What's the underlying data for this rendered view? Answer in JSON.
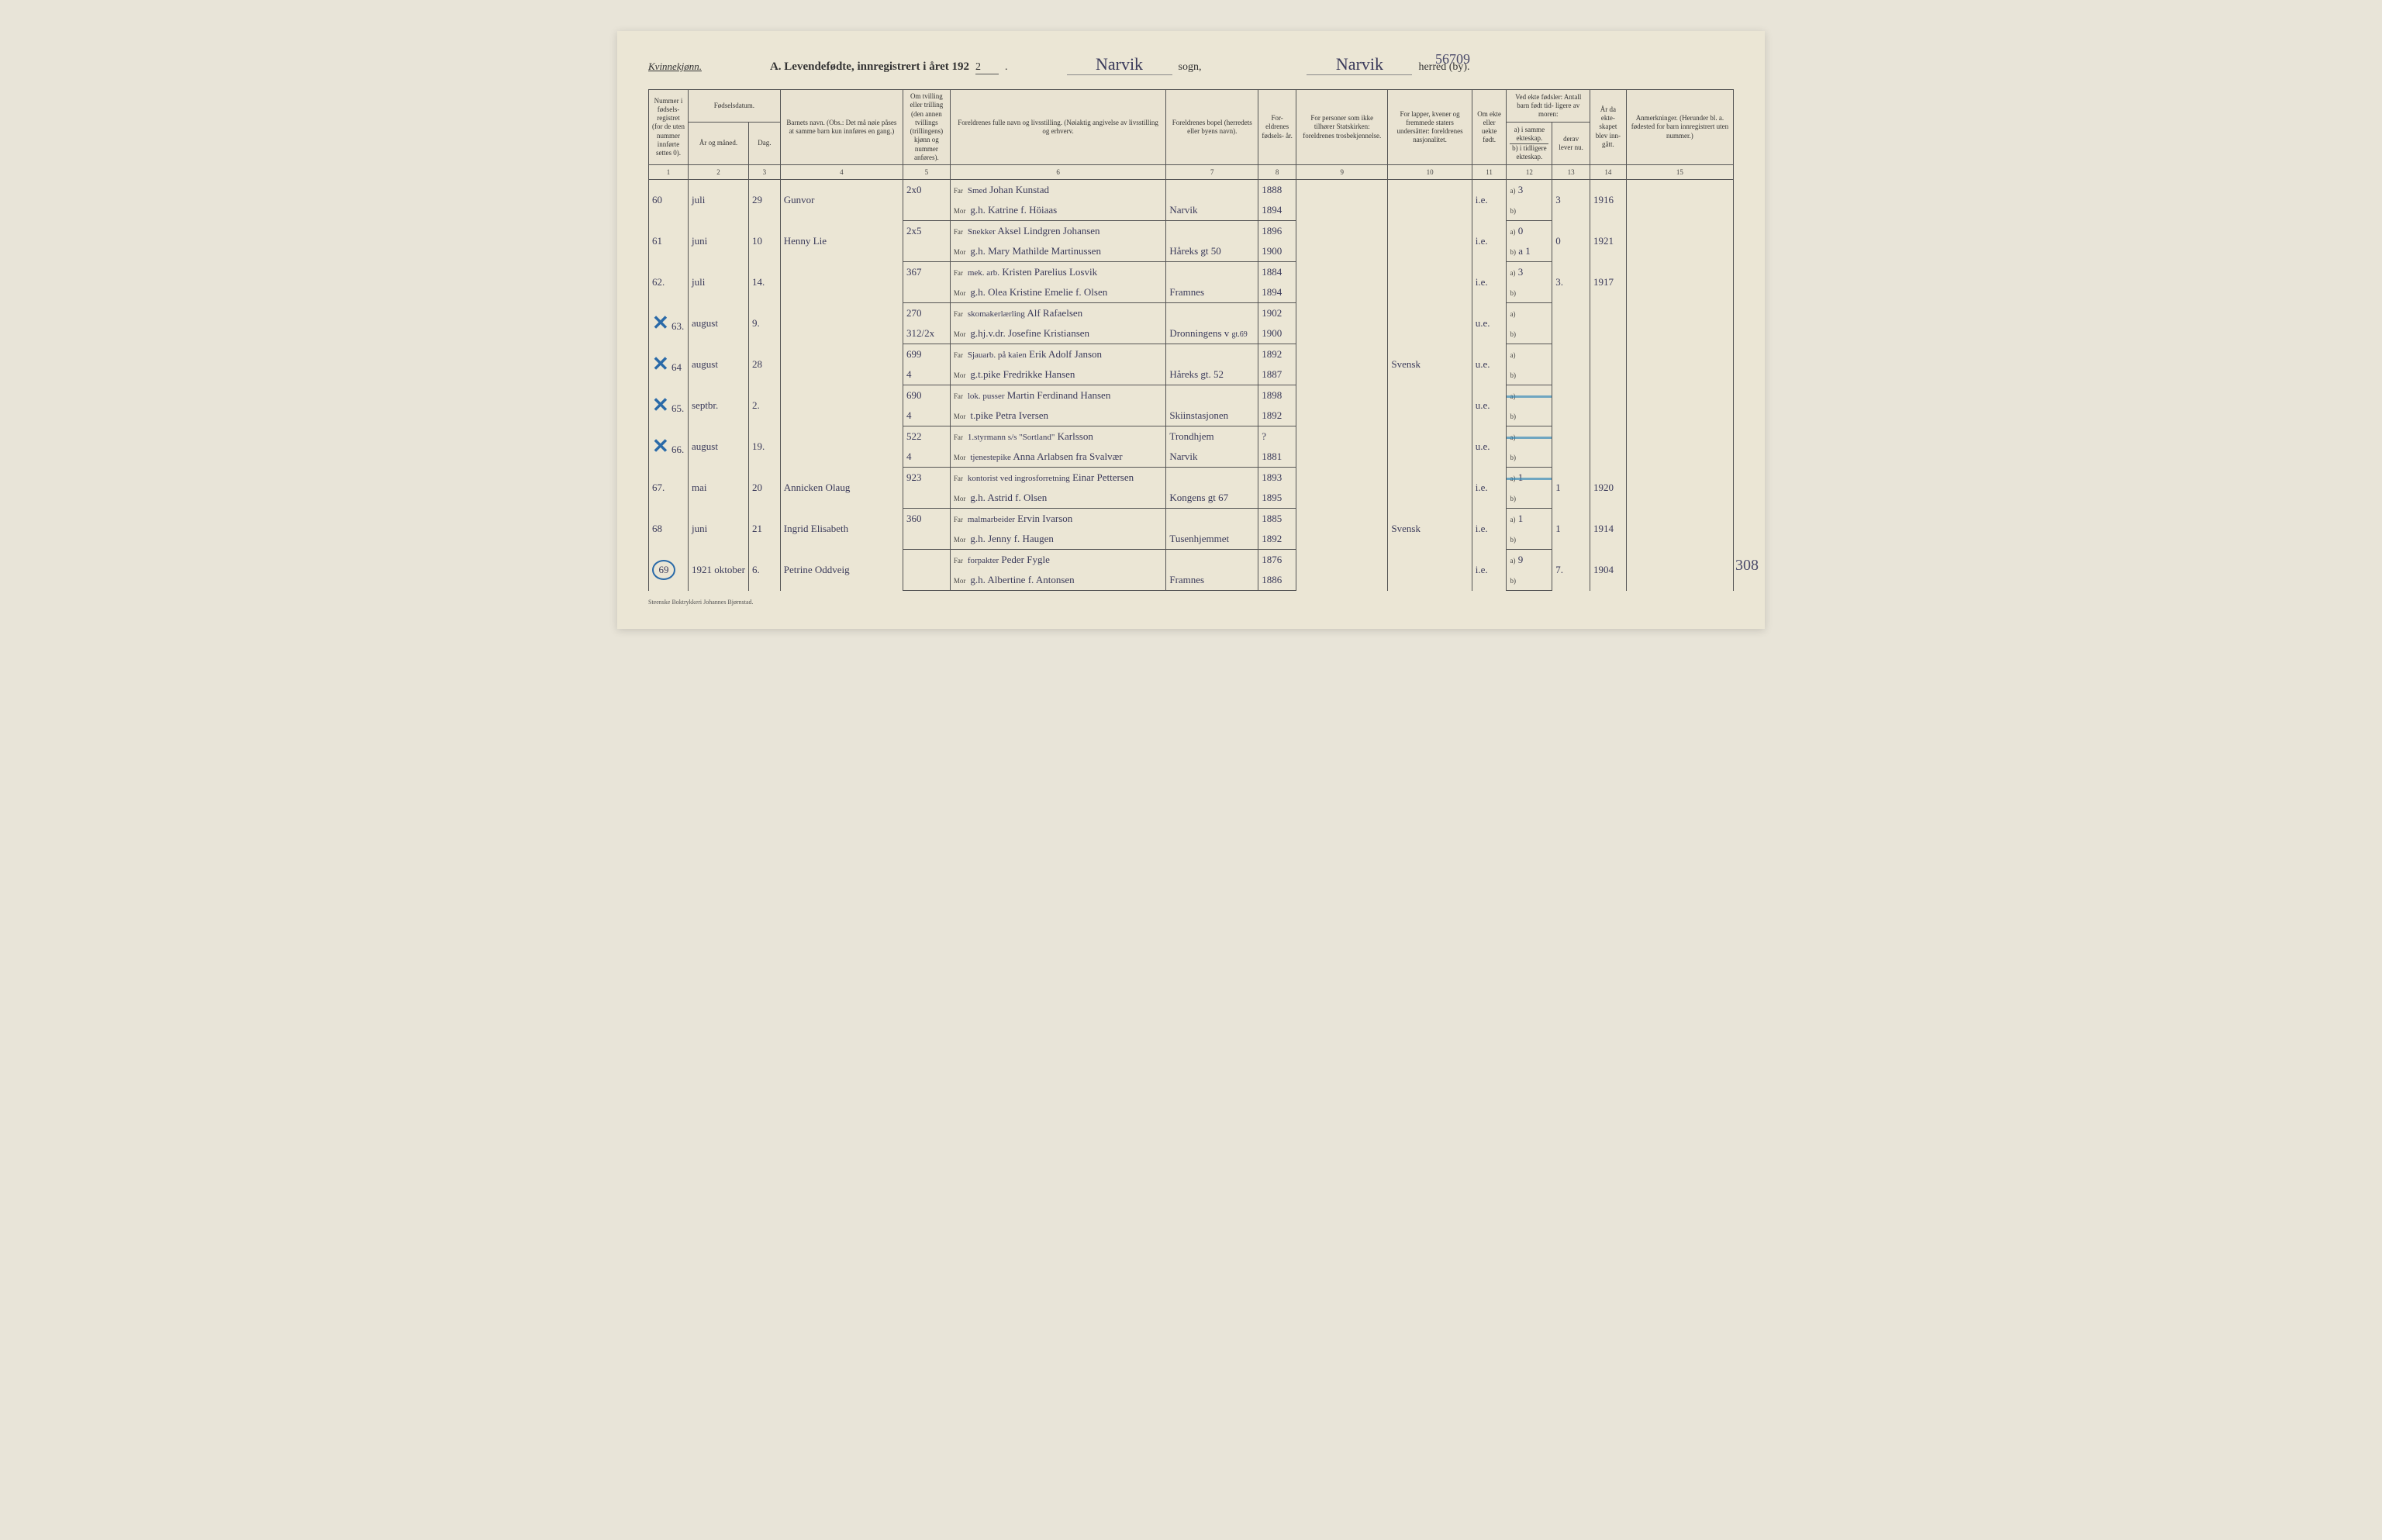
{
  "header": {
    "gender": "Kvinnekjønn.",
    "title_prefix": "A.  Levendefødte, innregistrert i året 192",
    "year_suffix": "2",
    "sogn_label": "sogn,",
    "herred_label": "herred (by).",
    "sogn_value": "Narvik",
    "herred_value": "Narvik",
    "ref_number": "56709"
  },
  "column_headers": {
    "c1": "Nummer i fødsels- registret (for de uten nummer innførte settes 0).",
    "c23_group": "Fødselsdatum.",
    "c2": "År og måned.",
    "c3": "Dag.",
    "c4": "Barnets navn.\n(Obs.: Det må nøie påses at samme barn kun innføres en gang.)",
    "c5": "Om tvilling eller trilling (den annen tvillings (trillingens) kjønn og nummer anføres).",
    "c6": "Foreldrenes fulle navn og livsstilling.\n(Nøiaktig angivelse av livsstilling og erhverv.",
    "c7": "Foreldrenes bopel\n(herredets eller byens navn).",
    "c8": "For- eldrenes fødsels- år.",
    "c9": "For personer som ikke tilhører Statskirken:\nforeldrenes trosbekjennelse.",
    "c10": "For lapper, kvener og fremmede staters undersåtter:\nforeldrenes nasjonalitet.",
    "c11": "Om ekte eller uekte født.",
    "c12_13_group": "Ved ekte fødsler:\nAntall barn født tid- ligere av moren:",
    "c12a": "a) i samme ekteskap.",
    "c12b": "b) i tidligere ekteskap.",
    "c13": "derav lever nu.",
    "c14": "År da ekte- skapet blev inn- gått.",
    "c15": "Anmerkninger.\n(Herunder bl. a. fødested for barn innregistrert uten nummer.)"
  },
  "col_numbers": [
    "1",
    "2",
    "3",
    "4",
    "5",
    "6",
    "7",
    "8",
    "9",
    "10",
    "11",
    "12",
    "13",
    "14",
    "15"
  ],
  "far_label": "Far",
  "mor_label": "Mor",
  "sub_a": "a)",
  "sub_b": "b)",
  "prof_top": "Smed",
  "rows": [
    {
      "num": "60",
      "month": "juli",
      "day": "29",
      "child": "Gunvor",
      "twin": "2x0",
      "far": "Johan Kunstad",
      "mor": "g.h. Katrine f. Höiaas",
      "bopel": "Narvik",
      "far_year": "1888",
      "mor_year": "1894",
      "rel": "",
      "nat": "",
      "ekte": "i.e.",
      "a": "3",
      "d": "3",
      "b": "",
      "year": "1916",
      "rem": ""
    },
    {
      "num": "61",
      "month": "juni",
      "day": "10",
      "child": "Henny Lie",
      "twin": "2x5",
      "far_prof": "Snekker",
      "far": "Aksel Lindgren Johansen",
      "mor": "g.h. Mary Mathilde Martinussen",
      "bopel": "Håreks gt 50",
      "far_year": "1896",
      "mor_year": "1900",
      "rel": "",
      "nat": "",
      "ekte": "i.e.",
      "a": "0",
      "d": "0",
      "b": "a 1",
      "year": "1921",
      "rem": ""
    },
    {
      "num": "62.",
      "month": "juli",
      "day": "14.",
      "child": "",
      "twin": "367",
      "far_prof": "mek. arb.",
      "far": "Kristen Parelius Losvik",
      "mor": "g.h. Olea Kristine Emelie f. Olsen",
      "bopel": "Framnes",
      "far_year": "1884",
      "mor_year": "1894",
      "rel": "",
      "nat": "",
      "ekte": "i.e.",
      "a": "3",
      "d": "3.",
      "b": "",
      "year": "1917",
      "rem": ""
    },
    {
      "num": "63.",
      "month": "august",
      "day": "9.",
      "child": "",
      "twin": "270",
      "far_prof": "skomakerlærling",
      "far": "Alf Rafaelsen",
      "mor": "g.hj.v.dr. Josefine Kristiansen",
      "twin2": "312/2x",
      "bopel": "Dronningens v",
      "bopel_extra": "gt.69",
      "far_year": "1902",
      "mor_year": "1900",
      "rel": "",
      "nat": "",
      "ekte": "u.e.",
      "a": "",
      "d": "",
      "b": "",
      "year": "",
      "rem": "",
      "mark": "X"
    },
    {
      "num": "64",
      "month": "august",
      "day": "28",
      "child": "",
      "twin": "699",
      "far_prof": "Sjauarb. på kaien",
      "far": "Erik Adolf Janson",
      "mor": "g.t.pike Fredrikke Hansen",
      "twin2": "4",
      "bopel": "Håreks gt. 52",
      "far_year": "1892",
      "mor_year": "1887",
      "rel": "",
      "nat": "Svensk",
      "ekte": "u.e.",
      "a": "",
      "d": "",
      "b": "",
      "year": "",
      "rem": "",
      "mark": "X"
    },
    {
      "num": "65.",
      "month": "septbr.",
      "day": "2.",
      "child": "",
      "twin": "690",
      "far_prof": "lok. pusser",
      "far": "Martin Ferdinand Hansen",
      "mor": "t.pike Petra Iversen",
      "twin2": "4",
      "bopel": "Skiinstasjonen",
      "far_year": "1898",
      "mor_year": "1892",
      "rel": "",
      "nat": "",
      "ekte": "u.e.",
      "a": "",
      "d": "",
      "b": "",
      "year": "",
      "rem": "",
      "mark": "X",
      "blue_strike": true
    },
    {
      "num": "66.",
      "month": "august",
      "day": "19.",
      "child": "",
      "twin": "522",
      "far_prof": "1.styrmann s/s \"Sortland\"",
      "far": "Karlsson",
      "far_bopel": "Trondhjem",
      "mor": "Anna Arlabsen fra Svalvær",
      "mor_prof": "tjenestepike",
      "twin2": "4",
      "bopel": "Narvik",
      "far_year": "?",
      "mor_year": "1881",
      "rel": "",
      "nat": "",
      "ekte": "u.e.",
      "a": "",
      "d": "",
      "b": "",
      "year": "",
      "rem": "",
      "mark": "X",
      "blue_strike": true
    },
    {
      "num": "67.",
      "month": "mai",
      "day": "20",
      "child": "Annicken Olaug",
      "twin": "923",
      "far_prof": "kontorist ved ingrosforretning",
      "far": "Einar Pettersen",
      "mor": "g.h. Astrid f. Olsen",
      "bopel": "Kongens gt 67",
      "far_year": "1893",
      "mor_year": "1895",
      "rel": "",
      "nat": "",
      "ekte": "i.e.",
      "a": "1",
      "d": "1",
      "b": "",
      "year": "1920",
      "rem": "",
      "blue_strike": true
    },
    {
      "num": "68",
      "month": "juni",
      "day": "21",
      "child": "Ingrid Elisabeth",
      "twin": "360",
      "far_prof": "malmarbeider",
      "far": "Ervin Ivarson",
      "mor": "g.h. Jenny f. Haugen",
      "bopel": "Tusenhjemmet",
      "far_year": "1885",
      "mor_year": "1892",
      "rel": "",
      "nat": "Svensk",
      "ekte": "i.e.",
      "a": "1",
      "d": "1",
      "b": "",
      "year": "1914",
      "rem": ""
    },
    {
      "num": "69",
      "month": "oktober",
      "day": "6.",
      "child": "Petrine Oddveig",
      "twin": "",
      "year_extra": "1921",
      "far_prof": "forpakter",
      "far": "Peder Fygle",
      "mor": "g.h. Albertine f. Antonsen",
      "bopel": "Framnes",
      "far_year": "1876",
      "mor_year": "1886",
      "rel": "",
      "nat": "",
      "ekte": "i.e.",
      "a": "9",
      "d": "7.",
      "b": "",
      "year": "1904",
      "rem": "",
      "circled": true
    }
  ],
  "side_note": "308",
  "footer": "Steenske Boktrykkeri Johannes Bjørnstad."
}
